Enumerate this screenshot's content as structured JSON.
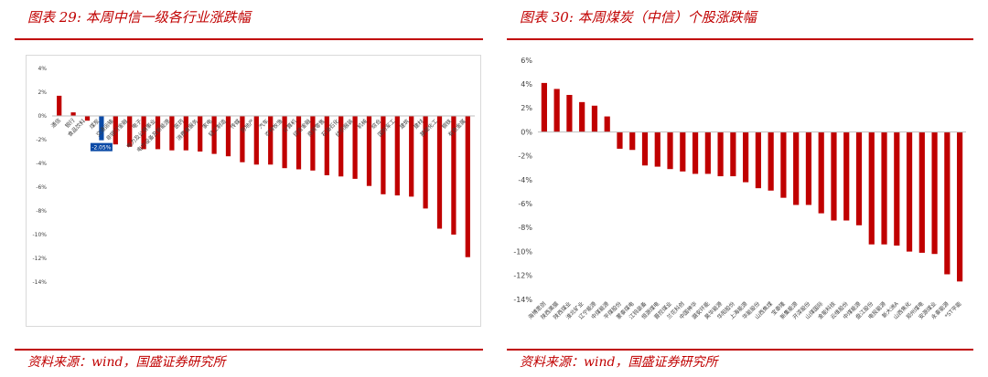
{
  "panels": [
    {
      "title": "图表 29:  本周中信一级各行业涨跌幅",
      "source": "资料来源：wind，国盛证券研究所"
    },
    {
      "title": "图表 30:  本周煤炭（中信）个股涨跌幅",
      "source": "资料来源：wind，国盛证券研究所"
    }
  ],
  "chart_data": [
    {
      "type": "bar",
      "title": "",
      "categories": [
        "通信",
        "银行",
        "食品饮料",
        "煤炭",
        "交通运输",
        "非银行金融",
        "电子",
        "电力及公用事业",
        "电力设备及新能源",
        "医药",
        "消费者服务",
        "家电",
        "轻工制造",
        "传媒",
        "房地产",
        "汽车",
        "农林牧渔",
        "计算机",
        "综合金融",
        "商贸零售",
        "石油石化",
        "纺织服装",
        "机械",
        "综合",
        "国防军工",
        "建筑",
        "建材",
        "基础化工",
        "钢铁",
        "有色金属"
      ],
      "values": [
        1.7,
        0.3,
        -0.4,
        -2.05,
        -2.4,
        -2.6,
        -2.8,
        -2.8,
        -2.9,
        -2.9,
        -3.0,
        -3.2,
        -3.4,
        -3.9,
        -4.1,
        -4.1,
        -4.4,
        -4.5,
        -4.6,
        -5.0,
        -5.1,
        -5.3,
        -5.9,
        -6.6,
        -6.7,
        -6.8,
        -7.8,
        -9.5,
        -10.0,
        -11.9
      ],
      "ylim": [
        -14,
        4
      ],
      "yticks": [
        4,
        2,
        0,
        -2,
        -4,
        -6,
        -8,
        -10,
        -12,
        -14
      ],
      "ytick_labels": [
        "4%",
        "2%",
        "0%",
        "-2%",
        "-4%",
        "-6%",
        "-8%",
        "-10%",
        "-12%",
        "-14%"
      ],
      "highlight_index": 3,
      "highlight_label": "-2.05%",
      "colors": {
        "bar": "#c00000",
        "highlight": "#0b4aa6",
        "axis": "#bfbfbf"
      }
    },
    {
      "type": "bar",
      "title": "",
      "categories": [
        "海博思创",
        "陕西黑猫",
        "陕西煤业",
        "淮北矿业",
        "辽宁能源",
        "中煤能源",
        "平煤股份",
        "蒙泰煤电",
        "江钨装备",
        "恒源煤电",
        "晋控煤业",
        "兰花科创",
        "中国神华",
        "潞安环能",
        "昊华能源",
        "华阳股份",
        "上海能源",
        "华能股份",
        "山西焦煤",
        "宝泰隆",
        "新集能源",
        "开滦股份",
        "山煤国际",
        "金能科技",
        "云维股份",
        "中煤能源",
        "盘江股份",
        "电投能源",
        "新大洲A",
        "山西焦化",
        "郑州煤电",
        "安源煤业",
        "永泰能源",
        "*ST平能"
      ],
      "values": [
        4.1,
        3.6,
        3.1,
        2.5,
        2.2,
        1.3,
        -1.4,
        -1.5,
        -2.8,
        -2.9,
        -3.1,
        -3.3,
        -3.5,
        -3.5,
        -3.7,
        -3.7,
        -4.2,
        -4.7,
        -4.9,
        -5.5,
        -6.1,
        -6.1,
        -6.8,
        -7.4,
        -7.4,
        -7.8,
        -9.4,
        -9.4,
        -9.5,
        -10.0,
        -10.1,
        -10.2,
        -11.9,
        -12.5
      ],
      "ylim": [
        -14,
        6
      ],
      "yticks": [
        6,
        4,
        2,
        0,
        -2,
        -4,
        -6,
        -8,
        -10,
        -12,
        -14
      ],
      "ytick_labels": [
        "6%",
        "4%",
        "2%",
        "0%",
        "-2%",
        "-4%",
        "-6%",
        "-8%",
        "-10%",
        "-12%",
        "-14%"
      ],
      "colors": {
        "bar": "#c00000",
        "axis": "#bfbfbf"
      }
    }
  ]
}
